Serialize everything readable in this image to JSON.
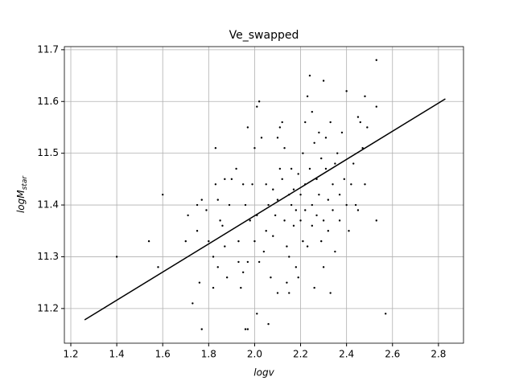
{
  "chart_data": {
    "type": "scatter",
    "title": "Ve_swapped",
    "x_label": "logv",
    "y_label": {
      "main": "logM",
      "sub": "star"
    },
    "xlim": [
      1.172,
      2.909
    ],
    "ylim": [
      11.133,
      11.706
    ],
    "xticks": [
      1.2,
      1.4,
      1.6,
      1.8,
      {
        "value": 2,
        "label": "2.0"
      },
      2.2,
      2.4,
      2.6,
      2.8
    ],
    "yticks": [
      11.2,
      11.3,
      11.4,
      11.5,
      11.6,
      11.7
    ],
    "grid": true,
    "color": "#000000",
    "x": [
      1.4,
      1.54,
      1.58,
      1.6,
      1.7,
      1.71,
      1.73,
      1.75,
      1.75,
      1.76,
      1.77,
      1.77,
      1.79,
      1.8,
      1.82,
      1.82,
      1.83,
      1.83,
      1.84,
      1.84,
      1.85,
      1.86,
      1.87,
      1.87,
      1.88,
      1.89,
      1.9,
      1.92,
      1.93,
      1.93,
      1.94,
      1.95,
      1.95,
      1.96,
      1.96,
      1.97,
      1.97,
      1.97,
      1.98,
      1.99,
      2.0,
      2.0,
      2.01,
      2.01,
      2.01,
      2.02,
      2.02,
      2.03,
      2.04,
      2.05,
      2.05,
      2.06,
      2.06,
      2.07,
      2.08,
      2.08,
      2.09,
      2.1,
      2.1,
      2.1,
      2.11,
      2.11,
      2.12,
      2.12,
      2.13,
      2.13,
      2.14,
      2.14,
      2.15,
      2.15,
      2.15,
      2.16,
      2.16,
      2.17,
      2.17,
      2.18,
      2.18,
      2.19,
      2.19,
      2.2,
      2.2,
      2.21,
      2.21,
      2.22,
      2.22,
      2.22,
      2.23,
      2.23,
      2.24,
      2.24,
      2.25,
      2.25,
      2.25,
      2.26,
      2.26,
      2.27,
      2.27,
      2.28,
      2.28,
      2.29,
      2.29,
      2.3,
      2.3,
      2.3,
      2.31,
      2.31,
      2.32,
      2.32,
      2.33,
      2.33,
      2.34,
      2.34,
      2.35,
      2.35,
      2.36,
      2.37,
      2.37,
      2.38,
      2.39,
      2.4,
      2.4,
      2.41,
      2.42,
      2.43,
      2.44,
      2.45,
      2.45,
      2.46,
      2.47,
      2.48,
      2.48,
      2.49,
      2.53,
      2.53,
      2.53,
      2.57
    ],
    "y": [
      11.3,
      11.33,
      11.28,
      11.42,
      11.33,
      11.38,
      11.21,
      11.35,
      11.4,
      11.25,
      11.16,
      11.41,
      11.39,
      11.33,
      11.3,
      11.24,
      11.51,
      11.44,
      11.28,
      11.41,
      11.37,
      11.36,
      11.32,
      11.45,
      11.26,
      11.4,
      11.45,
      11.47,
      11.33,
      11.29,
      11.24,
      11.27,
      11.44,
      11.4,
      11.16,
      11.55,
      11.29,
      11.16,
      11.37,
      11.44,
      11.33,
      11.51,
      11.19,
      11.59,
      11.38,
      11.6,
      11.29,
      11.53,
      11.31,
      11.44,
      11.35,
      11.4,
      11.17,
      11.26,
      11.34,
      11.43,
      11.38,
      11.41,
      11.53,
      11.23,
      11.47,
      11.55,
      11.45,
      11.56,
      11.37,
      11.51,
      11.25,
      11.32,
      11.42,
      11.23,
      11.3,
      11.4,
      11.47,
      11.36,
      11.43,
      11.28,
      11.39,
      11.46,
      11.26,
      11.37,
      11.42,
      11.5,
      11.33,
      11.44,
      11.56,
      11.39,
      11.61,
      11.32,
      11.65,
      11.47,
      11.4,
      11.58,
      11.36,
      11.24,
      11.52,
      11.45,
      11.38,
      11.54,
      11.42,
      11.49,
      11.33,
      11.64,
      11.28,
      11.37,
      11.47,
      11.53,
      11.41,
      11.35,
      11.56,
      11.23,
      11.44,
      11.39,
      11.48,
      11.31,
      11.5,
      11.42,
      11.37,
      11.54,
      11.45,
      11.4,
      11.62,
      11.35,
      11.44,
      11.48,
      11.4,
      11.57,
      11.39,
      11.56,
      11.51,
      11.44,
      11.61,
      11.55,
      11.68,
      11.59,
      11.37,
      11.19
    ],
    "fit": {
      "x": [
        1.26,
        2.83
      ],
      "y": [
        11.178,
        11.605
      ],
      "color": "#000000"
    }
  }
}
